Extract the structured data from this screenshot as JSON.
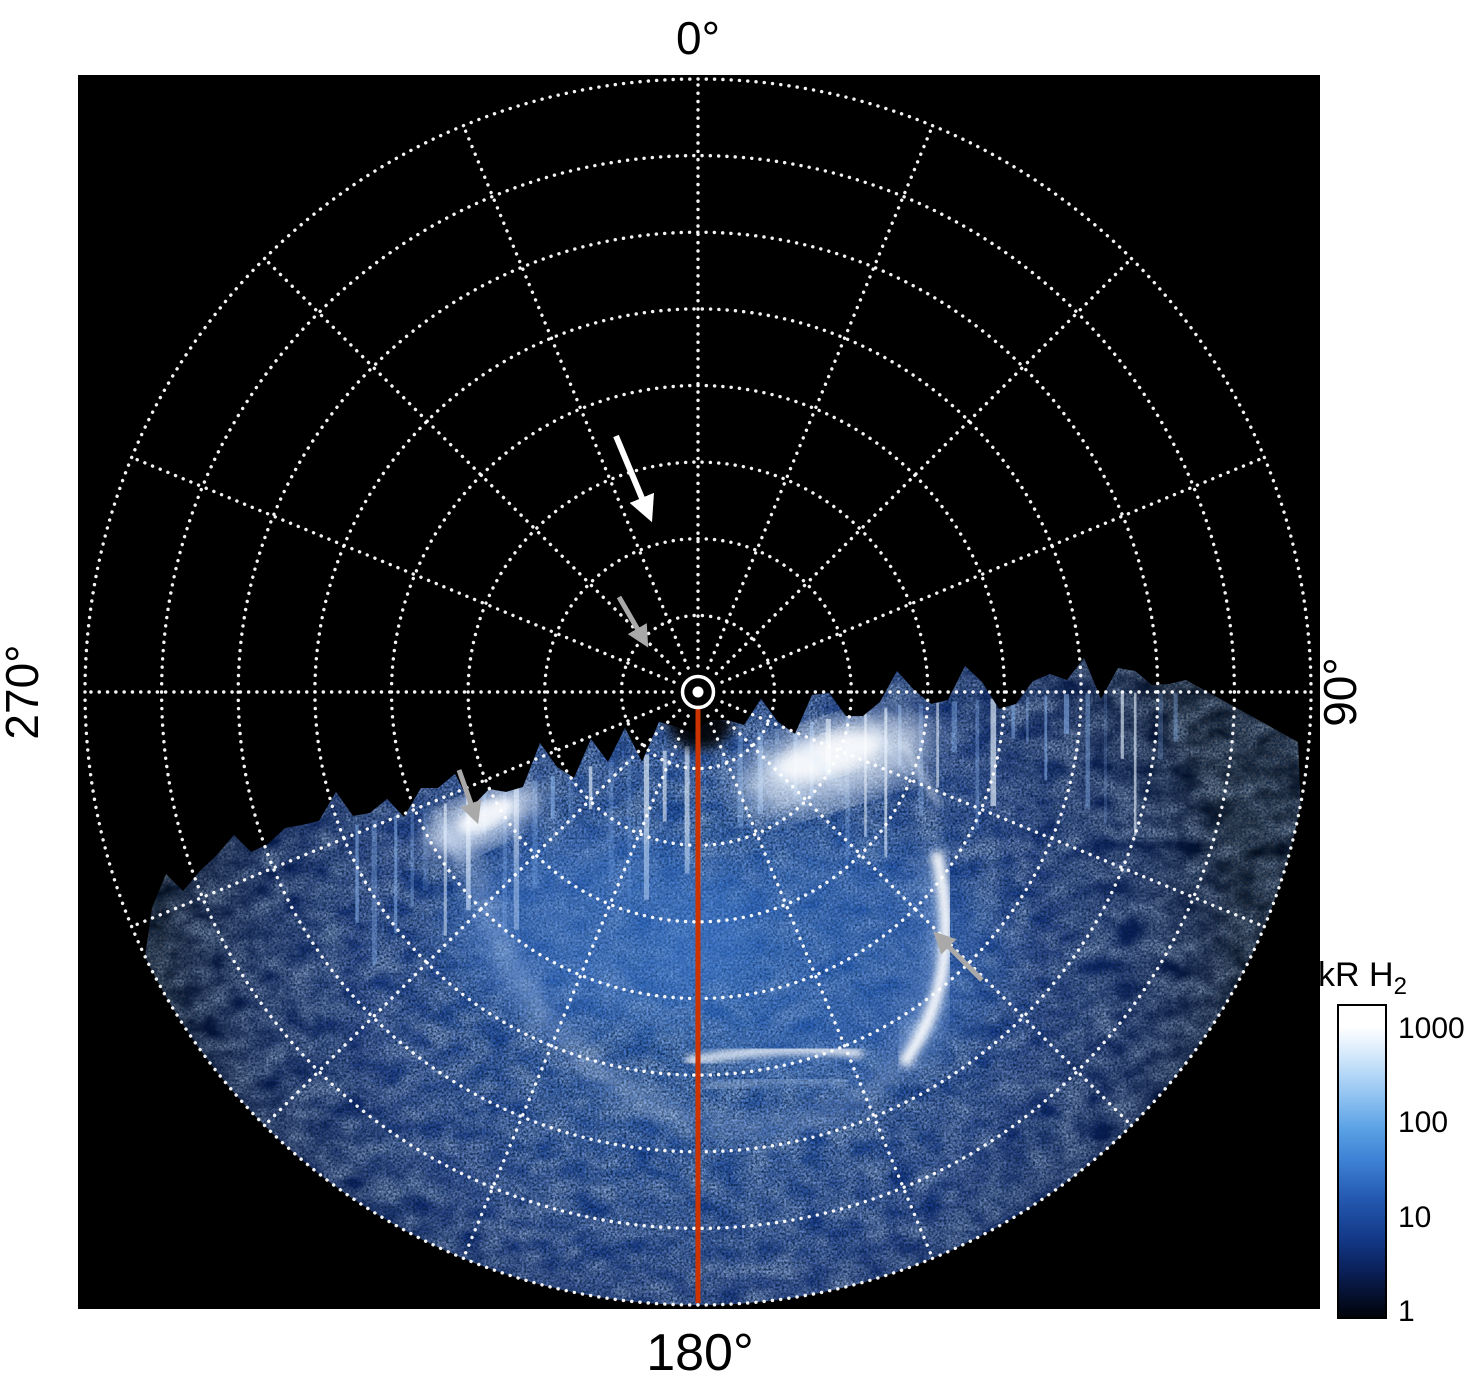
{
  "figure": {
    "axis_labels": {
      "top": "0°",
      "right": "90°",
      "bottom": "180°",
      "left": "270°"
    },
    "colorbar": {
      "title_main": "kR H",
      "title_sub": "2",
      "ticks": [
        "1000",
        "100",
        "10",
        "1"
      ]
    },
    "colors": {
      "page_background": "#ffffff",
      "plot_background": "#000000",
      "grid": "#ffffff",
      "meridian_line": "#cc3300",
      "annotation_white": "#ffffff",
      "annotation_gray": "#a9a9a9",
      "colormap_low_to_high": [
        "#000008",
        "#0a2058",
        "#2458b0",
        "#58a0e4",
        "#cfe6fb",
        "#ffffff"
      ]
    }
  },
  "chart_data": {
    "type": "heatmap",
    "projection": "polar, pole at center, azimuth labeled clockwise from top",
    "title": "",
    "angle_tick_labels": [
      "0°",
      "90°",
      "180°",
      "270°"
    ],
    "angle_tick_step_deg": 22.5,
    "radial_rings": 8,
    "colorbar": {
      "label": "kR H2",
      "quantity": "H2 auroral emission brightness",
      "units": "kilorayleighs",
      "scale": "log",
      "ticks": [
        1000,
        100,
        10,
        1
      ],
      "range": [
        1,
        1000
      ]
    },
    "meridian_marker": {
      "angle_deg": 180,
      "color": "#cc3300",
      "description": "solid red-orange line drawn from the pole (center) out to the 180° direction"
    },
    "emission": {
      "description": "Patchy blue H2 auroral emission fills the sunlit sector of the polar projection (roughly azimuth 95° to 265°, through 180°); the upper boundary is a jagged terminator edge with fine vertical striations; the remainder of the disk is black (no emission/no data).",
      "azimuth_extent_deg": [
        95,
        265
      ],
      "bright_features": [
        "large bright white patch on the terminator near azimuth ~150°",
        "smaller bright patch on the terminator near azimuth ~215°",
        "main auroral oval arc curving through the lower half of the projection",
        "strong narrow white arc segment at mid-radius near azimuth ~135°",
        "bright horizontal bar of emission near the 180° meridian at mid-low radius"
      ]
    },
    "annotations": [
      {
        "name": "white-arrow",
        "shape": "arrow",
        "color": "#ffffff",
        "from": [
          616,
          436
        ],
        "to": [
          649,
          515
        ]
      },
      {
        "name": "gray-arrow-upper",
        "shape": "arrow",
        "color": "#a9a9a9",
        "from": [
          619,
          597
        ],
        "to": [
          645,
          642
        ]
      },
      {
        "name": "gray-arrow-terminator",
        "shape": "arrow",
        "color": "#a9a9a9",
        "from": [
          459,
          770
        ],
        "to": [
          476,
          818
        ]
      },
      {
        "name": "gray-arrow-oval",
        "shape": "arrow",
        "color": "#a9a9a9",
        "from": [
          982,
          980
        ],
        "to": [
          938,
          936
        ]
      }
    ]
  }
}
